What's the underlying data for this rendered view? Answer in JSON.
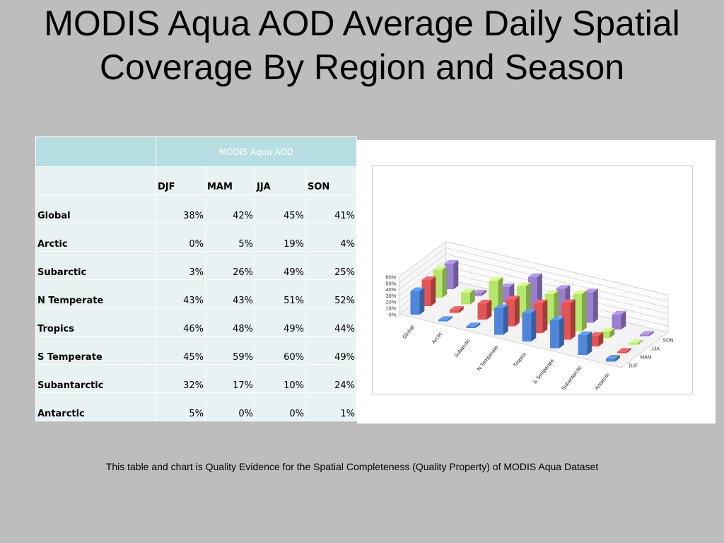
{
  "title": "MODIS Aqua AOD Average Daily Spatial Coverage By Region and Season",
  "table": {
    "group_header": "MODIS Aqua AOD",
    "columns": [
      "DJF",
      "MAM",
      "JJA",
      "SON"
    ],
    "rows": [
      {
        "label": "Global",
        "values": [
          "38%",
          "42%",
          "45%",
          "41%"
        ]
      },
      {
        "label": "Arctic",
        "values": [
          "0%",
          "5%",
          "19%",
          "4%"
        ]
      },
      {
        "label": "Subarctic",
        "values": [
          "3%",
          "26%",
          "49%",
          "25%"
        ]
      },
      {
        "label": "N Temperate",
        "values": [
          "43%",
          "43%",
          "51%",
          "52%"
        ]
      },
      {
        "label": "Tropics",
        "values": [
          "46%",
          "48%",
          "49%",
          "44%"
        ]
      },
      {
        "label": "S Temperate",
        "values": [
          "45%",
          "59%",
          "60%",
          "49%"
        ]
      },
      {
        "label": "Subantarctic",
        "values": [
          "32%",
          "17%",
          "10%",
          "24%"
        ]
      },
      {
        "label": "Antarctic",
        "values": [
          "5%",
          "0%",
          "0%",
          "1%"
        ]
      }
    ]
  },
  "chart_data": {
    "type": "bar",
    "style": "3d-clustered-depth",
    "categories": [
      "Global",
      "Arctic",
      "Subarctic",
      "N Temperate",
      "Tropics",
      "S Temperate",
      "Subantarctic",
      "Antarctic"
    ],
    "series": [
      {
        "name": "DJF",
        "values": [
          38,
          0,
          3,
          43,
          46,
          45,
          32,
          5
        ],
        "color": "#4f86d9"
      },
      {
        "name": "MAM",
        "values": [
          42,
          5,
          26,
          43,
          48,
          59,
          17,
          0
        ],
        "color": "#e35454"
      },
      {
        "name": "JJA",
        "values": [
          45,
          19,
          49,
          51,
          49,
          60,
          10,
          0
        ],
        "color": "#b5e86a"
      },
      {
        "name": "SON",
        "values": [
          41,
          4,
          25,
          52,
          44,
          49,
          24,
          1
        ],
        "color": "#9a7fd1"
      }
    ],
    "yticks": [
      "0%",
      "10%",
      "20%",
      "30%",
      "40%",
      "50%",
      "60%"
    ],
    "ylim": [
      0,
      60
    ],
    "legend_position": "right"
  },
  "caption": "This table and chart is Quality Evidence for the Spatial Completeness (Quality Property) of MODIS Aqua Dataset"
}
